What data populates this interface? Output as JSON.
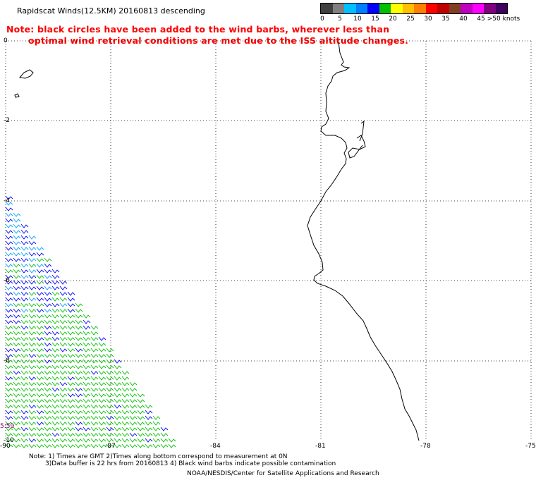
{
  "header": {
    "title": "Rapidscat Winds(12.5KM) 20160813 descending",
    "note_line1": "Note: black circles have been added to the wind barbs, wherever less than",
    "note_line2": "optimal wind retrieval conditions are met due to the ISS altitude changes."
  },
  "legend": {
    "labels": [
      "0",
      "5",
      "10",
      "15",
      "20",
      "25",
      "30",
      "35",
      "40",
      "45",
      ">50 knots"
    ],
    "colors": [
      "#404040",
      "#808080",
      "#00c0ff",
      "#0080ff",
      "#0000ff",
      "#00c000",
      "#ffff00",
      "#ffc000",
      "#ff8000",
      "#ff0000",
      "#c00000",
      "#804020",
      "#c000c0",
      "#ff00ff",
      "#800080",
      "#400060"
    ]
  },
  "map": {
    "lat_labels": [
      "0",
      "-2",
      "-4",
      "-6",
      "-8",
      "-10"
    ],
    "lon_labels": [
      "-90",
      "-87",
      "-84",
      "-81",
      "-78",
      "-75"
    ],
    "timestamp": "5:59",
    "barb_colors": {
      "light": "#00a0ff",
      "mid": "#0000ff",
      "strong": "#00c000"
    }
  },
  "footer": {
    "note_a": "Note: 1) Times are GMT 2)Times along bottom correspond to measurement at 0N",
    "note_b": "3)Data buffer is 22 hrs from 20160813 4) Black wind barbs indicate possible contamination",
    "credit": "NOAA/NESDIS/Center for Satellite Applications and Research"
  }
}
